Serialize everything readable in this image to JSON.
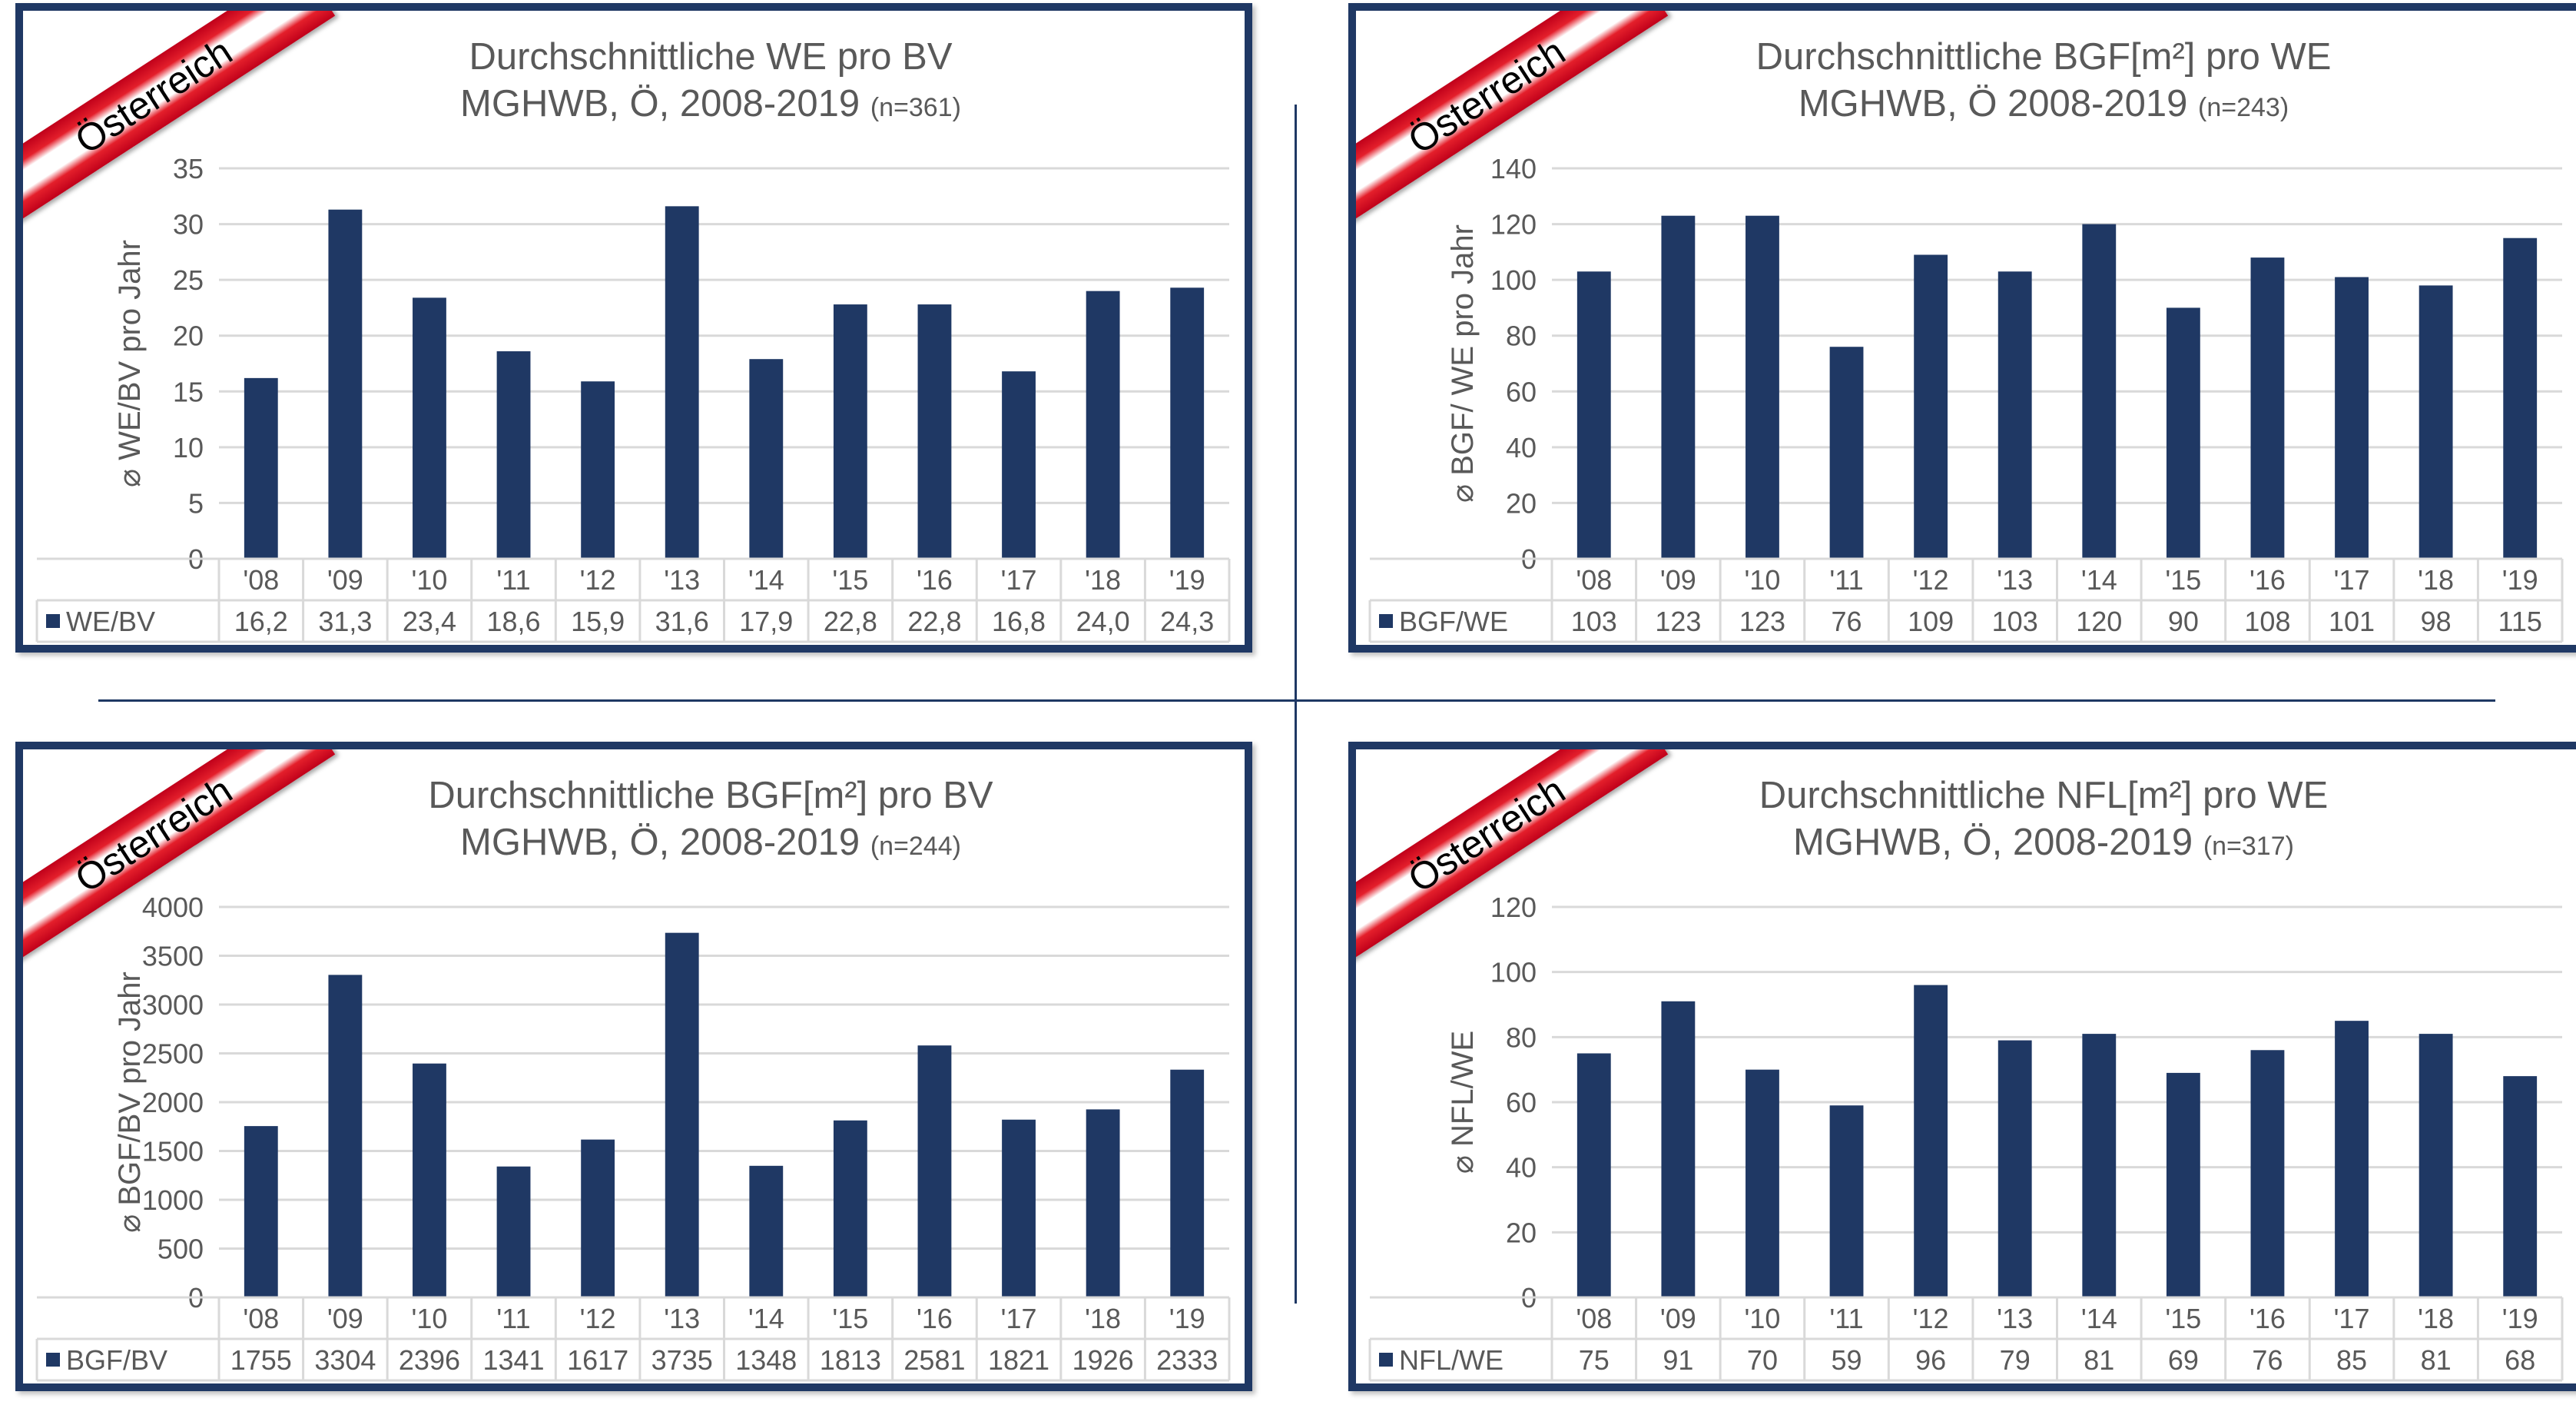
{
  "categories": [
    "'08",
    "'09",
    "'10",
    "'11",
    "'12",
    "'13",
    "'14",
    "'15",
    "'16",
    "'17",
    "'18",
    "'19"
  ],
  "colors": {
    "bar": "#1f3864",
    "frame": "#1f3864",
    "grid": "#d9d9d9",
    "text": "#595959",
    "banner_red": "#e41f2b"
  },
  "chart_data": [
    {
      "type": "bar",
      "title": "Durchschnittliche WE pro BV",
      "subtitle": "MGHWB, Ö, 2008-2019",
      "n_label": "(n=361)",
      "badge": "Österreich",
      "ylabel": "⌀ WE/BV pro Jahr",
      "ylim": [
        0,
        35
      ],
      "ystep": 5,
      "categories": [
        "'08",
        "'09",
        "'10",
        "'11",
        "'12",
        "'13",
        "'14",
        "'15",
        "'16",
        "'17",
        "'18",
        "'19"
      ],
      "series": [
        {
          "name": "WE/BV",
          "values": [
            16.2,
            31.3,
            23.4,
            18.6,
            15.9,
            31.6,
            17.9,
            22.8,
            22.8,
            16.8,
            24.0,
            24.3
          ]
        }
      ],
      "value_labels": [
        "16,2",
        "31,3",
        "23,4",
        "18,6",
        "15,9",
        "31,6",
        "17,9",
        "22,8",
        "22,8",
        "16,8",
        "24,0",
        "24,3"
      ],
      "tick_labels": [
        "0",
        "5",
        "10",
        "15",
        "20",
        "25",
        "30",
        "35"
      ],
      "grid": true,
      "legend": "data-table"
    },
    {
      "type": "bar",
      "title": "Durchschnittliche BGF[m²] pro WE",
      "subtitle": "MGHWB, Ö 2008-2019",
      "n_label": "(n=243)",
      "badge": "Österreich",
      "ylabel": "⌀ BGF/ WE pro Jahr",
      "ylim": [
        0,
        140
      ],
      "ystep": 20,
      "categories": [
        "'08",
        "'09",
        "'10",
        "'11",
        "'12",
        "'13",
        "'14",
        "'15",
        "'16",
        "'17",
        "'18",
        "'19"
      ],
      "series": [
        {
          "name": "BGF/WE",
          "values": [
            103,
            123,
            123,
            76,
            109,
            103,
            120,
            90,
            108,
            101,
            98,
            115
          ]
        }
      ],
      "value_labels": [
        "103",
        "123",
        "123",
        "76",
        "109",
        "103",
        "120",
        "90",
        "108",
        "101",
        "98",
        "115"
      ],
      "tick_labels": [
        "0",
        "20",
        "40",
        "60",
        "80",
        "100",
        "120",
        "140"
      ],
      "grid": true,
      "legend": "data-table"
    },
    {
      "type": "bar",
      "title": "Durchschnittliche BGF[m²] pro BV",
      "subtitle": "MGHWB, Ö, 2008-2019",
      "n_label": "(n=244)",
      "badge": "Österreich",
      "ylabel": "⌀ BGF/BV pro Jahr",
      "ylim": [
        0,
        4000
      ],
      "ystep": 500,
      "categories": [
        "'08",
        "'09",
        "'10",
        "'11",
        "'12",
        "'13",
        "'14",
        "'15",
        "'16",
        "'17",
        "'18",
        "'19"
      ],
      "series": [
        {
          "name": "BGF/BV",
          "values": [
            1755,
            3304,
            2396,
            1341,
            1617,
            3735,
            1348,
            1813,
            2581,
            1821,
            1926,
            2333
          ]
        }
      ],
      "value_labels": [
        "1755",
        "3304",
        "2396",
        "1341",
        "1617",
        "3735",
        "1348",
        "1813",
        "2581",
        "1821",
        "1926",
        "2333"
      ],
      "tick_labels": [
        "0",
        "500",
        "1000",
        "1500",
        "2000",
        "2500",
        "3000",
        "3500",
        "4000"
      ],
      "grid": true,
      "legend": "data-table"
    },
    {
      "type": "bar",
      "title": "Durchschnittliche NFL[m²] pro WE",
      "subtitle": "MGHWB, Ö, 2008-2019",
      "n_label": "(n=317)",
      "badge": "Österreich",
      "ylabel": "⌀ NFL/WE",
      "ylim": [
        0,
        120
      ],
      "ystep": 20,
      "categories": [
        "'08",
        "'09",
        "'10",
        "'11",
        "'12",
        "'13",
        "'14",
        "'15",
        "'16",
        "'17",
        "'18",
        "'19"
      ],
      "series": [
        {
          "name": "NFL/WE",
          "values": [
            75,
            91,
            70,
            59,
            96,
            79,
            81,
            69,
            76,
            85,
            81,
            68
          ]
        }
      ],
      "value_labels": [
        "75",
        "91",
        "70",
        "59",
        "96",
        "79",
        "81",
        "69",
        "76",
        "85",
        "81",
        "68"
      ],
      "tick_labels": [
        "0",
        "20",
        "40",
        "60",
        "80",
        "100",
        "120"
      ],
      "grid": true,
      "legend": "data-table"
    }
  ]
}
